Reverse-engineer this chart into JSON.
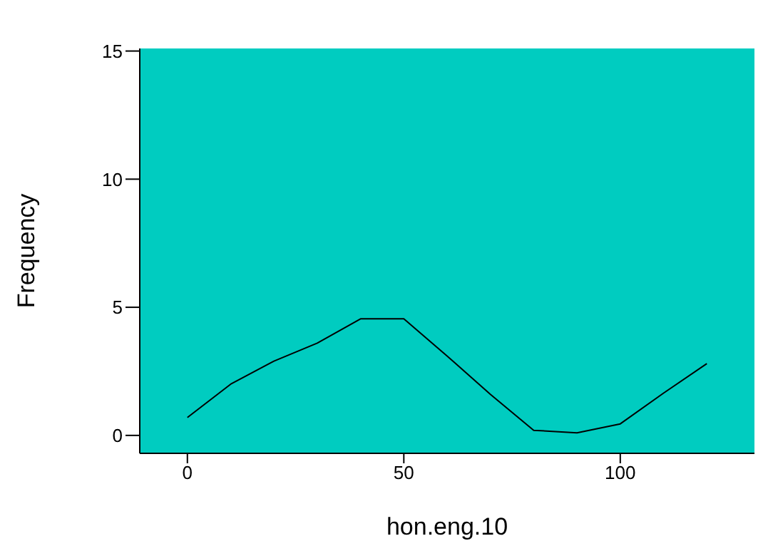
{
  "chart_data": {
    "type": "line",
    "xlabel": "hon.eng.10",
    "ylabel": "Frequency",
    "x": [
      0,
      10,
      20,
      30,
      40,
      50,
      60,
      70,
      80,
      90,
      100,
      110,
      120
    ],
    "series": [
      {
        "color": "#000000",
        "values": [
          0.7,
          2.0,
          2.9,
          3.6,
          4.55,
          4.55,
          3.1,
          1.6,
          0.2,
          0.1,
          0.45,
          1.65,
          2.8
        ]
      }
    ],
    "xlim": [
      -11,
      131
    ],
    "xticks": [
      0,
      50,
      100
    ],
    "ylim": [
      -0.7,
      15.1
    ],
    "yticks": [
      0,
      5,
      10,
      15
    ],
    "grid": false,
    "legend": false,
    "marker": "none",
    "line_style": "solid"
  }
}
